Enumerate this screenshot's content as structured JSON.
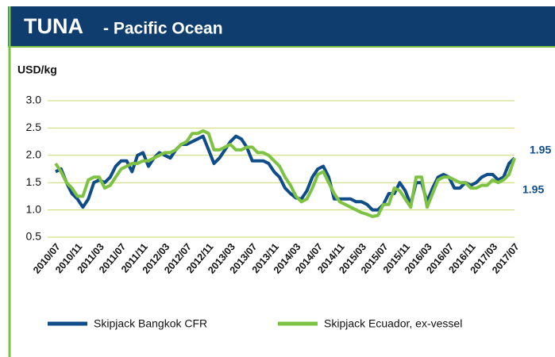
{
  "chart_data": {
    "type": "line",
    "title": "TUNA",
    "subtitle": "- Pacific Ocean",
    "y_label": "USD/kg",
    "categories": [
      "2010/07",
      null,
      null,
      null,
      "2010/11",
      null,
      null,
      null,
      "2011/03",
      null,
      null,
      null,
      "2011/07",
      null,
      null,
      null,
      "2011/11",
      null,
      null,
      null,
      "2012/03",
      null,
      null,
      null,
      "2012/07",
      null,
      null,
      null,
      "2012/11",
      null,
      null,
      null,
      "2013/03",
      null,
      null,
      null,
      "2013/07",
      null,
      null,
      null,
      "2013/11",
      null,
      null,
      null,
      "2014/03",
      null,
      null,
      null,
      "2014/07",
      null,
      null,
      null,
      "2014/11",
      null,
      null,
      null,
      "2015/03",
      null,
      null,
      null,
      "2015/07",
      null,
      null,
      null,
      "2015/11",
      null,
      null,
      null,
      "2016/03",
      null,
      null,
      null,
      "2016/07",
      null,
      null,
      null,
      "2016/11",
      null,
      null,
      null,
      "2017/03",
      null,
      null,
      null,
      "2017/07"
    ],
    "series": [
      {
        "name": "Skipjack Bangkok CFR",
        "color": "#0f4c8a",
        "end_label": "1.95",
        "values": [
          1.7,
          1.75,
          1.5,
          1.3,
          1.2,
          1.05,
          1.2,
          1.5,
          1.55,
          1.5,
          1.6,
          1.8,
          1.9,
          1.9,
          1.7,
          2.0,
          2.05,
          1.8,
          1.95,
          2.05,
          2.0,
          1.95,
          2.1,
          2.2,
          2.2,
          2.25,
          2.3,
          2.35,
          2.1,
          1.85,
          1.95,
          2.1,
          2.25,
          2.35,
          2.3,
          2.15,
          1.9,
          1.9,
          1.9,
          1.85,
          1.7,
          1.6,
          1.4,
          1.3,
          1.22,
          1.2,
          1.35,
          1.6,
          1.75,
          1.8,
          1.6,
          1.2,
          1.2,
          1.2,
          1.2,
          1.15,
          1.15,
          1.1,
          1.0,
          1.0,
          1.1,
          1.3,
          1.3,
          1.5,
          1.35,
          1.1,
          1.5,
          1.5,
          1.15,
          1.4,
          1.6,
          1.65,
          1.6,
          1.4,
          1.4,
          1.5,
          1.45,
          1.5,
          1.6,
          1.65,
          1.65,
          1.55,
          1.6,
          1.85,
          1.95
        ]
      },
      {
        "name": "Skipjack Ecuador, ex-vessel",
        "color": "#7dc242",
        "end_label": "1.95",
        "values": [
          1.85,
          1.7,
          1.5,
          1.4,
          1.25,
          1.25,
          1.55,
          1.6,
          1.6,
          1.4,
          1.45,
          1.6,
          1.75,
          1.8,
          1.85,
          1.85,
          1.9,
          1.9,
          1.95,
          2.0,
          2.05,
          2.05,
          2.1,
          2.2,
          2.25,
          2.4,
          2.4,
          2.45,
          2.4,
          2.1,
          2.1,
          2.15,
          2.2,
          2.1,
          2.1,
          2.15,
          2.15,
          2.05,
          2.05,
          2.0,
          1.9,
          1.8,
          1.6,
          1.45,
          1.25,
          1.15,
          1.2,
          1.4,
          1.65,
          1.7,
          1.5,
          1.3,
          1.15,
          1.1,
          1.05,
          1.0,
          0.95,
          0.92,
          0.88,
          0.9,
          1.1,
          1.1,
          1.4,
          1.35,
          1.2,
          1.05,
          1.6,
          1.6,
          1.05,
          1.3,
          1.55,
          1.6,
          1.6,
          1.55,
          1.5,
          1.5,
          1.4,
          1.4,
          1.45,
          1.45,
          1.55,
          1.5,
          1.55,
          1.65,
          1.95
        ]
      }
    ],
    "ylim": [
      0.5,
      3.0
    ],
    "yticks": [
      {
        "value": 0.5,
        "label": "0.5"
      },
      {
        "value": 1,
        "label": "1.0"
      },
      {
        "value": 1.5,
        "label": "1.5"
      },
      {
        "value": 2,
        "label": "2.0"
      },
      {
        "value": 2.5,
        "label": "2.5"
      },
      {
        "value": 3,
        "label": "3.0"
      }
    ],
    "grid": true,
    "grid_color": "#c8d86a"
  }
}
